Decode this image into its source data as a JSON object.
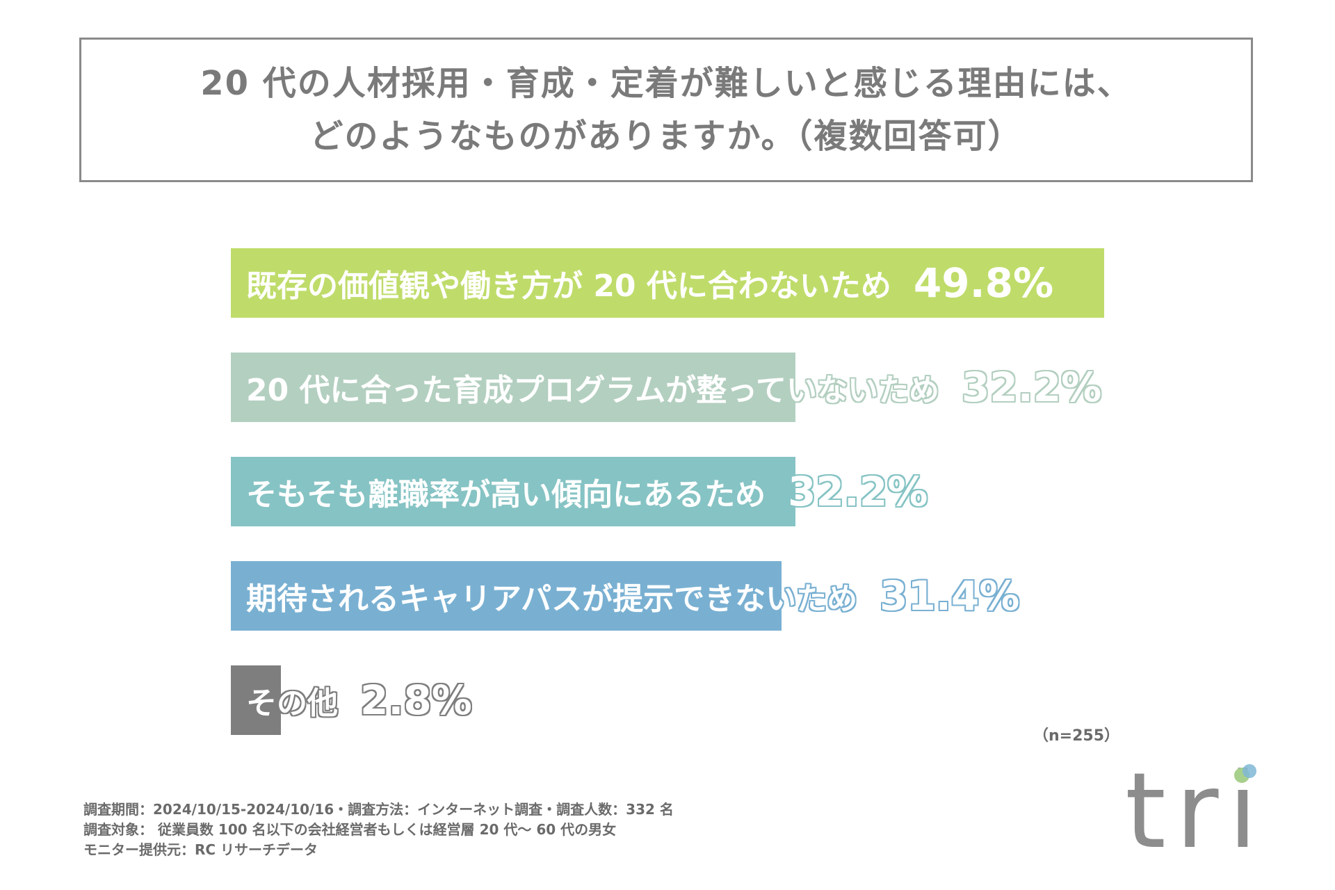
{
  "title": {
    "line1": "20 代の人材採用・育成・定着が難しいと感じる理由には、",
    "line2": "どのようなものがありますか。（複数回答可）"
  },
  "chart_data": {
    "type": "bar",
    "orientation": "horizontal",
    "categories": [
      "既存の価値観や働き方が 20 代に合わないため",
      "20 代に合った育成プログラムが整っていないため",
      "そもそも離職率が高い傾向にあるため",
      "期待されるキャリアパスが提示できないため",
      "その他"
    ],
    "values": [
      49.8,
      32.2,
      32.2,
      31.4,
      2.8
    ],
    "value_labels": [
      "49.8%",
      "32.2%",
      "32.2%",
      "31.4%",
      "2.8%"
    ],
    "colors": [
      "#bfdc6a",
      "#b3cfc0",
      "#86c3c4",
      "#79b0d2",
      "#7e7e7e"
    ],
    "xlim": [
      0,
      49.8
    ],
    "grid": false,
    "legend": "none"
  },
  "note": "（n=255）",
  "footer": {
    "line1": "調査期間：2024/10/15-2024/10/16・調査方法：インターネット調査・調査人数：332 名",
    "line2": "調査対象： 従業員数 100 名以下の会社経営者もしくは経営層 20 代〜 60 代の男女",
    "line3": "モニター提供元：RC リサーチデータ"
  },
  "logo": {
    "text": "tri",
    "dot_colors": [
      "#a8d08d",
      "#7fb7d6"
    ]
  }
}
